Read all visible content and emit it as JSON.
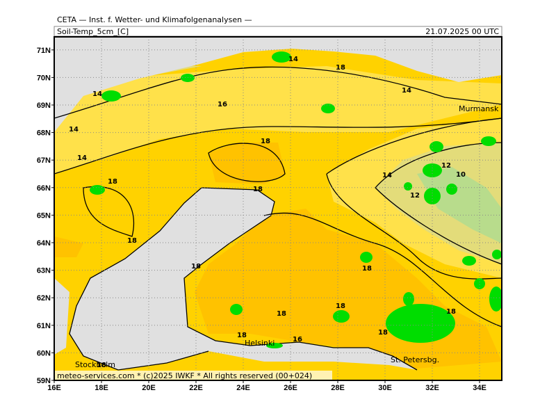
{
  "header": {
    "title": "CETA — Inst. f. Wetter- und Klimafolgenanalysen —",
    "field": "Soil-Temp_5cm_[C]",
    "valid": "21.07.2025 00 UTC"
  },
  "map": {
    "lon_ticks": [
      {
        "value": 16,
        "label": "16E"
      },
      {
        "value": 18,
        "label": "18E"
      },
      {
        "value": 20,
        "label": "20E"
      },
      {
        "value": 22,
        "label": "22E"
      },
      {
        "value": 24,
        "label": "24E"
      },
      {
        "value": 26,
        "label": "26E"
      },
      {
        "value": 28,
        "label": "28E"
      },
      {
        "value": 30,
        "label": "30E"
      },
      {
        "value": 32,
        "label": "32E"
      },
      {
        "value": 34,
        "label": "34E"
      }
    ],
    "lat_ticks": [
      {
        "value": 59,
        "label": "59N"
      },
      {
        "value": 60,
        "label": "60N"
      },
      {
        "value": 61,
        "label": "61N"
      },
      {
        "value": 62,
        "label": "62N"
      },
      {
        "value": 63,
        "label": "63N"
      },
      {
        "value": 64,
        "label": "64N"
      },
      {
        "value": 65,
        "label": "65N"
      },
      {
        "value": 66,
        "label": "66N"
      },
      {
        "value": 67,
        "label": "67N"
      },
      {
        "value": 68,
        "label": "68N"
      },
      {
        "value": 69,
        "label": "69N"
      },
      {
        "value": 70,
        "label": "70N"
      },
      {
        "value": 71,
        "label": "71N"
      }
    ],
    "contour_labels": [
      "14",
      "18",
      "14",
      "14",
      "16",
      "14",
      "14",
      "18",
      "18",
      "18",
      "14",
      "12",
      "10",
      "12",
      "18",
      "18",
      "18",
      "18",
      "18",
      "18",
      "18",
      "16",
      "18",
      "18"
    ],
    "cities": [
      "Murmansk",
      "Stockholm",
      "Helsinki",
      "St. Petersbg."
    ],
    "footer": "meteo-services.com * (c)2025 IWKF * All rights reserved (00+024)"
  }
}
